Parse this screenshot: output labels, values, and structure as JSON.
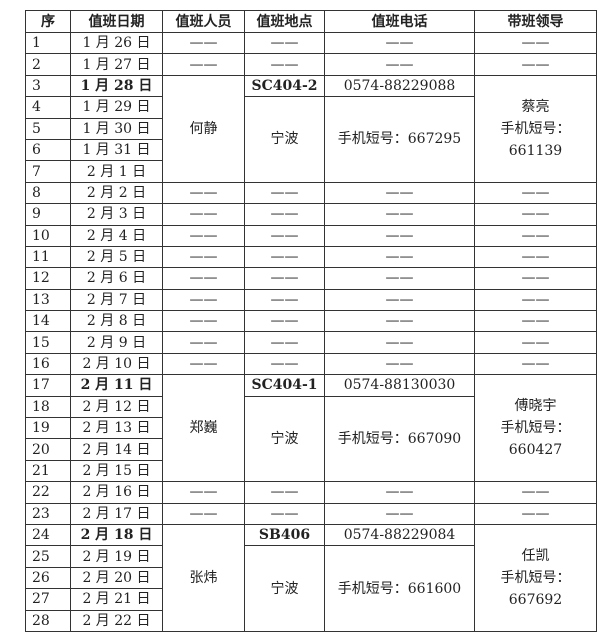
{
  "headers": [
    "序",
    "值班日期",
    "值班人员",
    "值班地点",
    "值班电话",
    "带班领导"
  ],
  "dash": "——",
  "schedule": [
    {
      "type": "empty",
      "days": [
        [
          "1",
          "1 月 26 日"
        ],
        [
          "2",
          "1 月 27 日"
        ]
      ]
    },
    {
      "type": "group",
      "person": "何静",
      "location_code": "SC404-2",
      "phone": "0574-88229088",
      "location": "宁波",
      "short_phone": "手机短号：667295",
      "leader": "蔡亮",
      "leader_label": "手机短号：",
      "leader_short": "661139",
      "days": [
        [
          "3",
          "1 月 28 日"
        ],
        [
          "4",
          "1 月 29 日"
        ],
        [
          "5",
          "1 月 30 日"
        ],
        [
          "6",
          "1 月 31 日"
        ],
        [
          "7",
          "2 月 1 日"
        ]
      ]
    },
    {
      "type": "empty",
      "days": [
        [
          "8",
          "2 月 2 日"
        ],
        [
          "9",
          "2 月 3 日"
        ],
        [
          "10",
          "2 月 4 日"
        ],
        [
          "11",
          "2 月 5 日"
        ],
        [
          "12",
          "2 月 6 日"
        ],
        [
          "13",
          "2 月 7 日"
        ],
        [
          "14",
          "2 月 8 日"
        ],
        [
          "15",
          "2 月 9 日"
        ],
        [
          "16",
          "2 月 10 日"
        ]
      ]
    },
    {
      "type": "group",
      "person": "郑巍",
      "location_code": "SC404-1",
      "phone": "0574-88130030",
      "location": "宁波",
      "short_phone": "手机短号：667090",
      "leader": "傅晓宇",
      "leader_label": "手机短号：",
      "leader_short": "660427",
      "days": [
        [
          "17",
          "2 月 11 日"
        ],
        [
          "18",
          "2 月 12 日"
        ],
        [
          "19",
          "2 月 13 日"
        ],
        [
          "20",
          "2 月 14 日"
        ],
        [
          "21",
          "2 月 15 日"
        ]
      ]
    },
    {
      "type": "empty",
      "days": [
        [
          "22",
          "2 月 16 日"
        ],
        [
          "23",
          "2 月 17 日"
        ]
      ]
    },
    {
      "type": "group",
      "person": "张炜",
      "location_code": "SB406",
      "phone": "0574-88229084",
      "location": "宁波",
      "short_phone": "手机短号：661600",
      "leader": "任凯",
      "leader_label": "手机短号：",
      "leader_short": "667692",
      "days": [
        [
          "24",
          "2 月 18 日"
        ],
        [
          "25",
          "2 月 19 日"
        ],
        [
          "26",
          "2 月 20 日"
        ],
        [
          "27",
          "2 月 21 日"
        ],
        [
          "28",
          "2 月 22 日"
        ]
      ]
    }
  ]
}
